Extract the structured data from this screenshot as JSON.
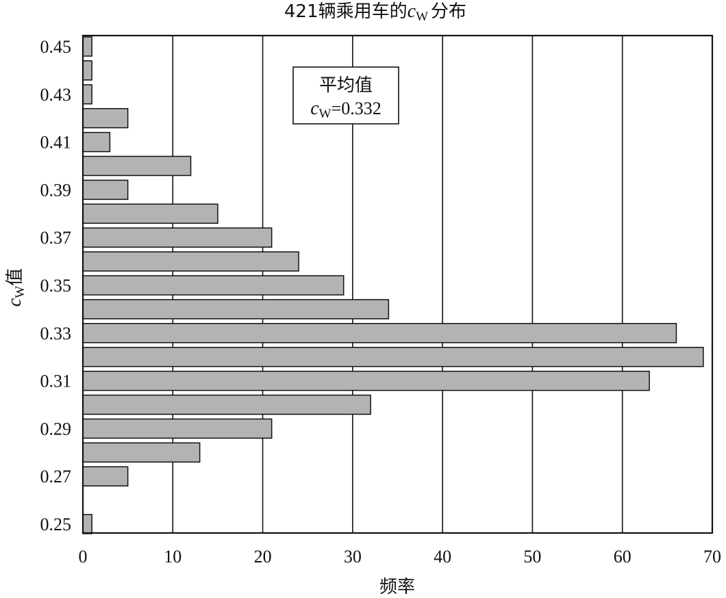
{
  "chart_data": {
    "type": "bar",
    "orientation": "horizontal",
    "title_prefix": "421辆乘用车的",
    "title_symbol": "c",
    "title_subscript": "W",
    "title_suffix": "分布",
    "xlabel": "频率",
    "ylabel_symbol": "c",
    "ylabel_subscript": "W",
    "ylabel_suffix": "值",
    "xlim": [
      0,
      70
    ],
    "xticks": [
      "0",
      "10",
      "20",
      "30",
      "40",
      "50",
      "60",
      "70"
    ],
    "yticks": [
      "0.45",
      "0.43",
      "0.41",
      "0.39",
      "0.37",
      "0.35",
      "0.33",
      "0.31",
      "0.29",
      "0.27",
      "0.25"
    ],
    "categories": [
      0.45,
      0.44,
      0.43,
      0.42,
      0.41,
      0.4,
      0.39,
      0.38,
      0.37,
      0.36,
      0.35,
      0.34,
      0.33,
      0.32,
      0.31,
      0.3,
      0.29,
      0.28,
      0.27,
      0.26,
      0.25
    ],
    "values": [
      1,
      1,
      1,
      5,
      3,
      12,
      5,
      15,
      21,
      24,
      29,
      34,
      66,
      69,
      63,
      32,
      21,
      13,
      5,
      0,
      1
    ],
    "grid": "vertical",
    "annotation": {
      "title": "平均值",
      "symbol": "c",
      "subscript": "W",
      "value_text": "=0.332"
    }
  }
}
